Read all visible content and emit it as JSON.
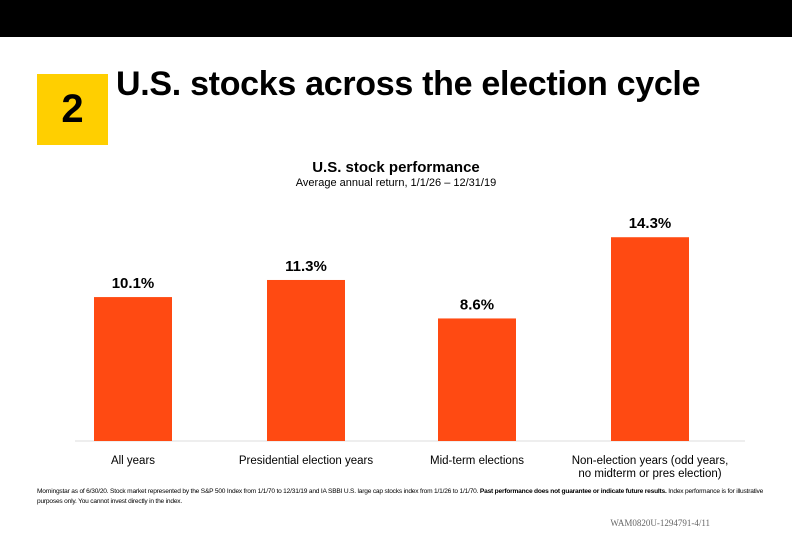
{
  "badge": {
    "number": "2"
  },
  "headline": "U.S. stocks across the election cycle",
  "chart_data": {
    "type": "bar",
    "title": "U.S. stock performance",
    "subtitle": "Average annual return, 1/1/26 – 12/31/19",
    "categories": [
      [
        "All years"
      ],
      [
        "Presidential election years"
      ],
      [
        "Mid-term elections"
      ],
      [
        "Non-election years (odd years,",
        "no midterm or pres election)"
      ]
    ],
    "values": [
      10.1,
      11.3,
      8.6,
      14.3
    ],
    "data_labels": [
      "10.1%",
      "11.3%",
      "8.6%",
      "14.3%"
    ],
    "unit": "%",
    "ylim": [
      0,
      16
    ],
    "bar_color": "#FF4A12",
    "grid": false
  },
  "footnote": {
    "part1": "Morningstar as of 6/30/20. Stock market represented by the S&P 500 Index from 1/1/70 to 12/31/19 and IA SBBI U.S. large cap stocks index from 1/1/26 to 1/1/70. ",
    "part2": "Past performance does not guarantee or indicate future results.",
    "part3": " Index performance is for illustrative purposes only. You cannot invest directly in the index."
  },
  "code": "WAM0820U-1294791-4/11",
  "colors": {
    "topbar": "#000000",
    "badge": "#FFCF00",
    "bar": "#FF4A12",
    "axis": "#DDDDDD"
  }
}
